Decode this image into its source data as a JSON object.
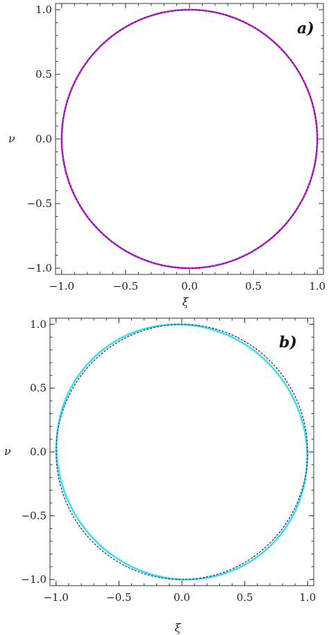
{
  "chart_data": [
    {
      "type": "line",
      "panel_label": "a)",
      "xlabel": "ξ",
      "ylabel": "ν",
      "xlim": [
        -1.0,
        1.0
      ],
      "ylim": [
        -1.0,
        1.0
      ],
      "xticks": [
        "-1.0",
        "-0.5",
        "0.0",
        "0.5",
        "1.0"
      ],
      "yticks": [
        "1.0",
        "0.5",
        "0.0",
        "-0.5",
        "-1.0"
      ],
      "grid": false,
      "series": [
        {
          "style": "solid",
          "color": "#e020c8",
          "shape": "closed-curve",
          "center": [
            0.0,
            0.0
          ],
          "radius_x": 1.0,
          "radius_y": 1.0
        },
        {
          "style": "dashed",
          "color": "#2a2a9a",
          "shape": "closed-curve",
          "center": [
            0.0,
            0.0
          ],
          "radius_x": 1.0,
          "radius_y": 1.0
        }
      ]
    },
    {
      "type": "line",
      "panel_label": "b)",
      "xlabel": "ξ",
      "ylabel": "ν",
      "xlim": [
        -1.0,
        1.0
      ],
      "ylim": [
        -1.0,
        1.0
      ],
      "xticks": [
        "-1.0",
        "-0.5",
        "0.0",
        "0.5",
        "1.0"
      ],
      "yticks": [
        "1.0",
        "0.5",
        "0.0",
        "-0.5",
        "-1.0"
      ],
      "grid": false,
      "series": [
        {
          "style": "solid",
          "color": "#3ee0e8",
          "shape": "closed-curve",
          "center": [
            0.0,
            0.0
          ],
          "radius_x": 1.0,
          "radius_y": 1.0,
          "tilt": 0.1
        },
        {
          "style": "dashed",
          "color": "#2a2a9a",
          "shape": "closed-curve",
          "center": [
            0.0,
            0.0
          ],
          "radius_x": 1.0,
          "radius_y": 1.0
        }
      ]
    }
  ]
}
